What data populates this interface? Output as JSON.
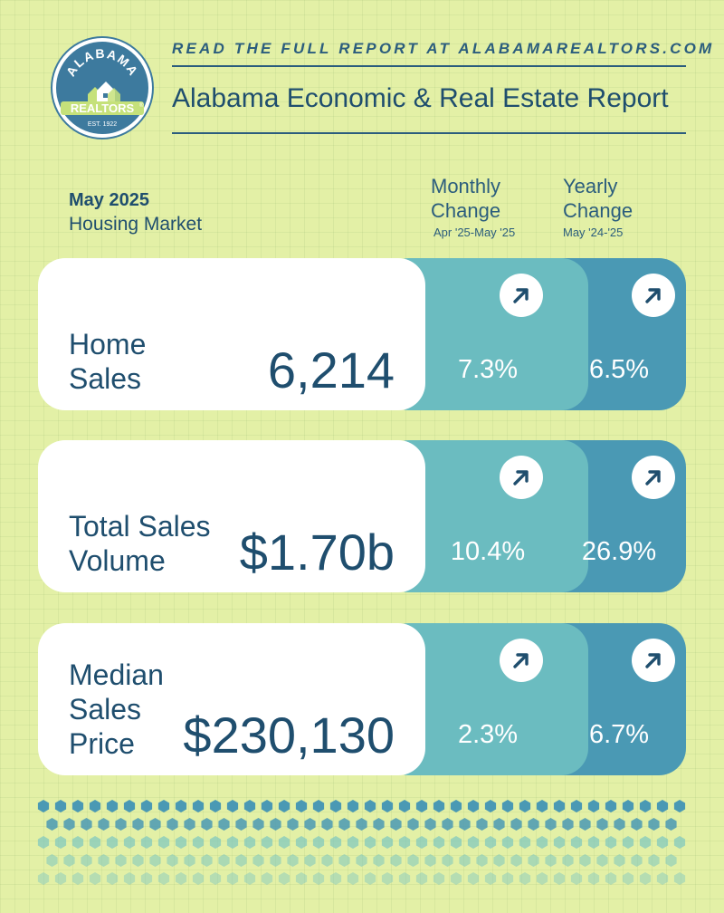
{
  "logo": {
    "arc_text": "ALABAMA",
    "banner_text": "REALTORS",
    "est_text": "EST. 1922",
    "registered": "®"
  },
  "header": {
    "tagline": "READ THE FULL REPORT AT ALABAMAREALTORS.COM",
    "title": "Alabama Economic & Real Estate Report"
  },
  "period": {
    "month": "May 2025",
    "subtitle": "Housing Market"
  },
  "columns": {
    "monthly": {
      "line1": "Monthly",
      "line2": "Change",
      "range": "Apr '25-May '25"
    },
    "yearly": {
      "line1": "Yearly",
      "line2": "Change",
      "range": "May '24-'25"
    }
  },
  "metrics": [
    {
      "label_lines": [
        "Home",
        "Sales"
      ],
      "value": "6,214",
      "monthly": "7.3%",
      "yearly": "6.5%"
    },
    {
      "label_lines": [
        "Total Sales",
        "Volume"
      ],
      "value": "$1.70b",
      "monthly": "10.4%",
      "yearly": "26.9%"
    },
    {
      "label_lines": [
        "Median",
        "Sales",
        "Price"
      ],
      "value": "$230,130",
      "monthly": "2.3%",
      "yearly": "6.7%"
    }
  ],
  "colors": {
    "background": "#e3f0a6",
    "navy": "#1f4e6e",
    "monthly_teal": "#6bbcc0",
    "yearly_blue": "#4a99b4",
    "dot_dark": "#4a99b4",
    "dot_light": "#7cc6c0",
    "logo_green": "#c5e17a"
  },
  "icons": {
    "trend": "arrow-up-right-icon"
  }
}
